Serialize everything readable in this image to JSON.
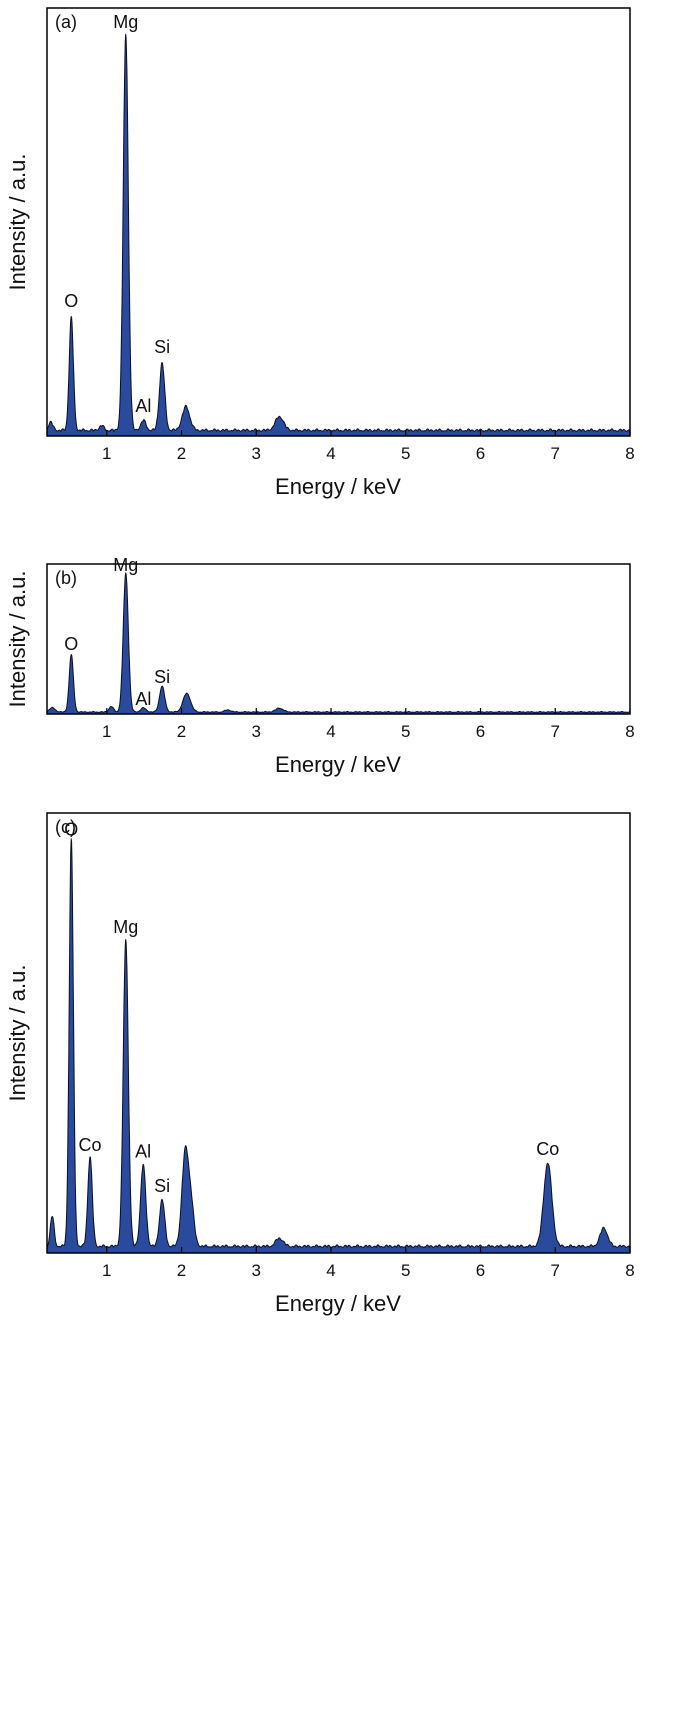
{
  "colors": {
    "fill": "#2a4a9e",
    "stroke": "#0a0f24",
    "frame": "#000000"
  },
  "chart_data": [
    {
      "type": "area",
      "panel_label": "(a)",
      "xlabel": "Energy / keV",
      "ylabel": "Intensity / a.u.",
      "xlim": [
        0.2,
        8
      ],
      "ylim": [
        0,
        1.08
      ],
      "x_ticks": [
        "1",
        "2",
        "3",
        "4",
        "5",
        "6",
        "7",
        "8"
      ],
      "y_ticks_shown": false,
      "grid": false,
      "baseline": 0.012,
      "peaks": [
        {
          "x": 0.25,
          "h": 0.02,
          "w": 0.03
        },
        {
          "x": 0.525,
          "h": 0.285,
          "w": 0.028
        },
        {
          "x": 0.93,
          "h": 0.012,
          "w": 0.03
        },
        {
          "x": 1.254,
          "h": 1.0,
          "w": 0.034
        },
        {
          "x": 1.49,
          "h": 0.025,
          "w": 0.035
        },
        {
          "x": 1.74,
          "h": 0.17,
          "w": 0.035
        },
        {
          "x": 2.06,
          "h": 0.06,
          "w": 0.05
        },
        {
          "x": 3.31,
          "h": 0.035,
          "w": 0.055
        }
      ],
      "annotations": [
        {
          "text": "O",
          "x": 0.525,
          "y": 0.325
        },
        {
          "text": "Mg",
          "x": 1.254,
          "y": 1.03
        },
        {
          "text": "Al",
          "x": 1.49,
          "y": 0.06
        },
        {
          "text": "Si",
          "x": 1.74,
          "y": 0.21
        }
      ]
    },
    {
      "type": "area",
      "panel_label": "(b)",
      "xlabel": "Energy / keV",
      "ylabel": "Intensity / a.u.",
      "xlim": [
        0.2,
        8
      ],
      "ylim": [
        0,
        1.08
      ],
      "x_ticks": [
        "1",
        "2",
        "3",
        "4",
        "5",
        "6",
        "7",
        "8"
      ],
      "y_ticks_shown": false,
      "grid": false,
      "baseline": 0.012,
      "peaks": [
        {
          "x": 0.27,
          "h": 0.03,
          "w": 0.04
        },
        {
          "x": 0.525,
          "h": 0.415,
          "w": 0.028
        },
        {
          "x": 1.06,
          "h": 0.04,
          "w": 0.03
        },
        {
          "x": 1.254,
          "h": 1.0,
          "w": 0.034
        },
        {
          "x": 1.49,
          "h": 0.03,
          "w": 0.035
        },
        {
          "x": 1.74,
          "h": 0.185,
          "w": 0.035
        },
        {
          "x": 2.07,
          "h": 0.135,
          "w": 0.05
        },
        {
          "x": 2.62,
          "h": 0.015,
          "w": 0.04
        },
        {
          "x": 3.31,
          "h": 0.028,
          "w": 0.05
        }
      ],
      "annotations": [
        {
          "text": "O",
          "x": 0.525,
          "y": 0.46
        },
        {
          "text": "Mg",
          "x": 1.254,
          "y": 1.03
        },
        {
          "text": "Al",
          "x": 1.49,
          "y": 0.065
        },
        {
          "text": "Si",
          "x": 1.74,
          "y": 0.225
        }
      ]
    },
    {
      "type": "area",
      "panel_label": "(c)",
      "xlabel": "Energy / keV",
      "ylabel": "Intensity / a.u.",
      "xlim": [
        0.2,
        8
      ],
      "ylim": [
        0,
        1.08
      ],
      "x_ticks": [
        "1",
        "2",
        "3",
        "4",
        "5",
        "6",
        "7",
        "8"
      ],
      "y_ticks_shown": false,
      "grid": false,
      "baseline": 0.014,
      "peaks": [
        {
          "x": 0.27,
          "h": 0.075,
          "w": 0.025
        },
        {
          "x": 0.525,
          "h": 1.0,
          "w": 0.028
        },
        {
          "x": 0.776,
          "h": 0.22,
          "w": 0.03
        },
        {
          "x": 1.254,
          "h": 0.755,
          "w": 0.034
        },
        {
          "x": 1.487,
          "h": 0.2,
          "w": 0.035
        },
        {
          "x": 1.74,
          "h": 0.115,
          "w": 0.035
        },
        {
          "x": 2.05,
          "h": 0.23,
          "w": 0.045
        },
        {
          "x": 2.13,
          "h": 0.09,
          "w": 0.04
        },
        {
          "x": 3.31,
          "h": 0.02,
          "w": 0.05
        },
        {
          "x": 6.9,
          "h": 0.205,
          "w": 0.055
        },
        {
          "x": 7.65,
          "h": 0.045,
          "w": 0.05
        }
      ],
      "annotations": [
        {
          "text": "O",
          "x": 0.525,
          "y": 1.025
        },
        {
          "text": "Co",
          "x": 0.776,
          "y": 0.25
        },
        {
          "text": "Mg",
          "x": 1.254,
          "y": 0.785
        },
        {
          "text": "Al",
          "x": 1.487,
          "y": 0.235
        },
        {
          "text": "Si",
          "x": 1.74,
          "y": 0.15
        },
        {
          "text": "Co",
          "x": 6.9,
          "y": 0.24
        }
      ]
    }
  ]
}
